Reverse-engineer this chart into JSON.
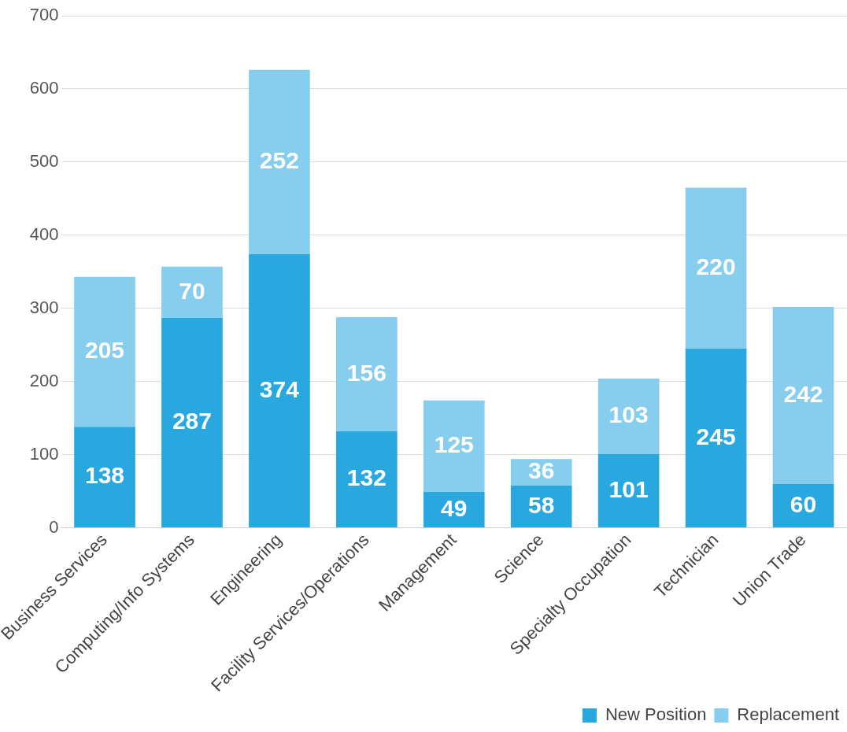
{
  "chart_data": {
    "type": "bar",
    "stacked": true,
    "categories": [
      "Business Services",
      "Computing/Info Systems",
      "Engineering",
      "Facility Services/Operations",
      "Management",
      "Science",
      "Specialty Occupation",
      "Technician",
      "Union Trade"
    ],
    "series": [
      {
        "name": "New Position",
        "color": "#29a8e0",
        "values": [
          138,
          287,
          374,
          132,
          49,
          58,
          101,
          245,
          60
        ]
      },
      {
        "name": "Replacement",
        "color": "#87cdee",
        "values": [
          205,
          70,
          252,
          156,
          125,
          36,
          103,
          220,
          242
        ]
      }
    ],
    "ylim": [
      0,
      700
    ],
    "yticks": [
      0,
      100,
      200,
      300,
      400,
      500,
      600,
      700
    ],
    "grid": "y",
    "legend": "bottom right",
    "data_labels": true
  }
}
